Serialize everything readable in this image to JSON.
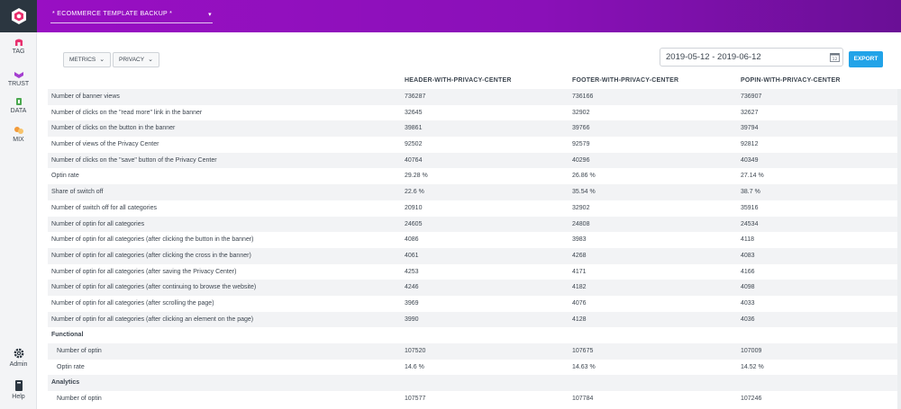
{
  "header": {
    "project": "* ECOMMERCE TEMPLATE BACKUP *",
    "logo_icon": "hexagon-logo-icon"
  },
  "sidebar": {
    "items": [
      {
        "label": "TAG",
        "icon": "tag-icon",
        "color": "#e8306e"
      },
      {
        "label": "TRUST",
        "icon": "trust-icon",
        "color": "#a43fd0"
      },
      {
        "label": "DATA",
        "icon": "data-icon",
        "color": "#4aa84f"
      },
      {
        "label": "MIX",
        "icon": "mix-icon",
        "color": "#f29a3a"
      },
      {
        "label": "Admin",
        "icon": "gear-icon"
      },
      {
        "label": "Help",
        "icon": "book-icon"
      }
    ]
  },
  "toolbar": {
    "metrics_label": "METRICS",
    "privacy_label": "PRIVACY",
    "date_range": "2019-05-12 - 2019-06-12",
    "export_label": "EXPORT",
    "accent": "#22a3e8"
  },
  "table": {
    "columns": [
      "HEADER-WITH-PRIVACY-CENTER",
      "FOOTER-WITH-PRIVACY-CENTER",
      "POPIN-WITH-PRIVACY-CENTER"
    ],
    "rows": [
      {
        "label": "Number of banner views",
        "v": [
          "736287",
          "736166",
          "736907"
        ]
      },
      {
        "label": "Number of clicks on the \"read more\" link in the banner",
        "v": [
          "32645",
          "32902",
          "32627"
        ]
      },
      {
        "label": "Number of clicks on the button in the banner",
        "v": [
          "39861",
          "39766",
          "39794"
        ]
      },
      {
        "label": "Number of views of the Privacy Center",
        "v": [
          "92502",
          "92579",
          "92812"
        ]
      },
      {
        "label": "Number of clicks on the \"save\" button of the Privacy Center",
        "v": [
          "40764",
          "40296",
          "40349"
        ]
      },
      {
        "label": "Optin rate",
        "v": [
          "29.28 %",
          "26.86 %",
          "27.14 %"
        ]
      },
      {
        "label": "Share of switch off",
        "v": [
          "22.6 %",
          "35.54 %",
          "38.7 %"
        ]
      },
      {
        "label": "Number of switch off for all categories",
        "v": [
          "20910",
          "32902",
          "35916"
        ]
      },
      {
        "label": "Number of optin for all categories",
        "v": [
          "24605",
          "24808",
          "24534"
        ]
      },
      {
        "label": "Number of optin for all categories (after clicking the button in the banner)",
        "v": [
          "4086",
          "3983",
          "4118"
        ]
      },
      {
        "label": "Number of optin for all categories (after clicking the cross in the banner)",
        "v": [
          "4061",
          "4268",
          "4083"
        ]
      },
      {
        "label": "Number of optin for all categories (after saving the Privacy Center)",
        "v": [
          "4253",
          "4171",
          "4166"
        ]
      },
      {
        "label": "Number of optin for all categories (after continuing to browse the website)",
        "v": [
          "4246",
          "4182",
          "4098"
        ]
      },
      {
        "label": "Number of optin for all categories (after scrolling the page)",
        "v": [
          "3969",
          "4076",
          "4033"
        ]
      },
      {
        "label": "Number of optin for all categories (after clicking an element on the page)",
        "v": [
          "3990",
          "4128",
          "4036"
        ]
      },
      {
        "label": "Functional",
        "section": true,
        "v": [
          "",
          "",
          ""
        ]
      },
      {
        "label": "Number of optin",
        "sub": true,
        "v": [
          "107520",
          "107675",
          "107009"
        ]
      },
      {
        "label": "Optin rate",
        "sub": true,
        "v": [
          "14.6 %",
          "14.63 %",
          "14.52 %"
        ]
      },
      {
        "label": "Analytics",
        "section": true,
        "v": [
          "",
          "",
          ""
        ]
      },
      {
        "label": "Number of optin",
        "sub": true,
        "v": [
          "107577",
          "107784",
          "107246"
        ]
      }
    ]
  }
}
